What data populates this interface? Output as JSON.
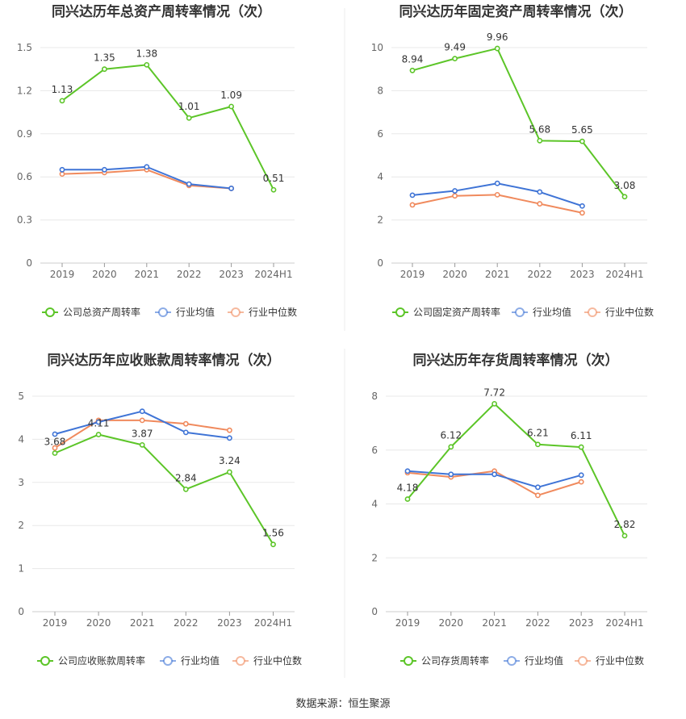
{
  "source": "数据来源：恒生聚源",
  "colors": {
    "company": "#5cc528",
    "avg": "#3f74d6",
    "median": "#f08a5d",
    "grid": "#e8e8e8",
    "axis": "#666666"
  },
  "chart_data": [
    {
      "type": "line",
      "title": "同兴达历年总资产周转率情况（次）",
      "categories": [
        "2019",
        "2020",
        "2021",
        "2022",
        "2023",
        "2024H1"
      ],
      "yticks": [
        "0",
        "0.3",
        "0.6",
        "0.9",
        "1.2",
        "1.5"
      ],
      "ylim": [
        0,
        1.5
      ],
      "series": [
        {
          "name": "公司总资产周转率",
          "values": [
            1.13,
            1.35,
            1.38,
            1.01,
            1.09,
            0.51
          ],
          "labels": [
            "1.13",
            "1.35",
            "1.38",
            "1.01",
            "1.09",
            "0.51"
          ]
        },
        {
          "name": "行业均值",
          "values": [
            0.65,
            0.65,
            0.67,
            0.55,
            0.52,
            null
          ]
        },
        {
          "name": "行业中位数",
          "values": [
            0.62,
            0.63,
            0.65,
            0.54,
            0.52,
            null
          ]
        }
      ]
    },
    {
      "type": "line",
      "title": "同兴达历年固定资产周转率情况（次）",
      "categories": [
        "2019",
        "2020",
        "2021",
        "2022",
        "2023",
        "2024H1"
      ],
      "yticks": [
        "0",
        "2",
        "4",
        "6",
        "8",
        "10"
      ],
      "ylim": [
        0,
        10
      ],
      "series": [
        {
          "name": "公司固定资产周转率",
          "values": [
            8.94,
            9.49,
            9.96,
            5.68,
            5.65,
            3.08
          ],
          "labels": [
            "8.94",
            "9.49",
            "9.96",
            "5.68",
            "5.65",
            "3.08"
          ]
        },
        {
          "name": "行业均值",
          "values": [
            3.15,
            3.35,
            3.7,
            3.3,
            2.65,
            null
          ]
        },
        {
          "name": "行业中位数",
          "values": [
            2.7,
            3.12,
            3.17,
            2.75,
            2.33,
            null
          ]
        }
      ]
    },
    {
      "type": "line",
      "title": "同兴达历年应收账款周转率情况（次）",
      "categories": [
        "2019",
        "2020",
        "2021",
        "2022",
        "2023",
        "2024H1"
      ],
      "yticks": [
        "0",
        "1",
        "2",
        "3",
        "4",
        "5"
      ],
      "ylim": [
        0,
        5
      ],
      "series": [
        {
          "name": "公司应收账款周转率",
          "values": [
            3.68,
            4.11,
            3.87,
            2.84,
            3.24,
            1.56
          ],
          "labels": [
            "3.68",
            "4.11",
            "3.87",
            "2.84",
            "3.24",
            "1.56"
          ]
        },
        {
          "name": "行业均值",
          "values": [
            4.12,
            4.4,
            4.65,
            4.16,
            4.03,
            null
          ]
        },
        {
          "name": "行业中位数",
          "values": [
            3.8,
            4.44,
            4.44,
            4.36,
            4.21,
            null
          ]
        }
      ]
    },
    {
      "type": "line",
      "title": "同兴达历年存货周转率情况（次）",
      "categories": [
        "2019",
        "2020",
        "2021",
        "2022",
        "2023",
        "2024H1"
      ],
      "yticks": [
        "0",
        "2",
        "4",
        "6",
        "8"
      ],
      "ylim": [
        0,
        8
      ],
      "series": [
        {
          "name": "公司存货周转率",
          "values": [
            4.18,
            6.12,
            7.72,
            6.21,
            6.11,
            2.82
          ],
          "labels": [
            "4.18",
            "6.12",
            "7.72",
            "6.21",
            "6.11",
            "2.82"
          ]
        },
        {
          "name": "行业均值",
          "values": [
            5.22,
            5.1,
            5.1,
            4.62,
            5.07,
            null
          ]
        },
        {
          "name": "行业中位数",
          "values": [
            5.16,
            5.0,
            5.22,
            4.32,
            4.82,
            null
          ]
        }
      ]
    }
  ]
}
